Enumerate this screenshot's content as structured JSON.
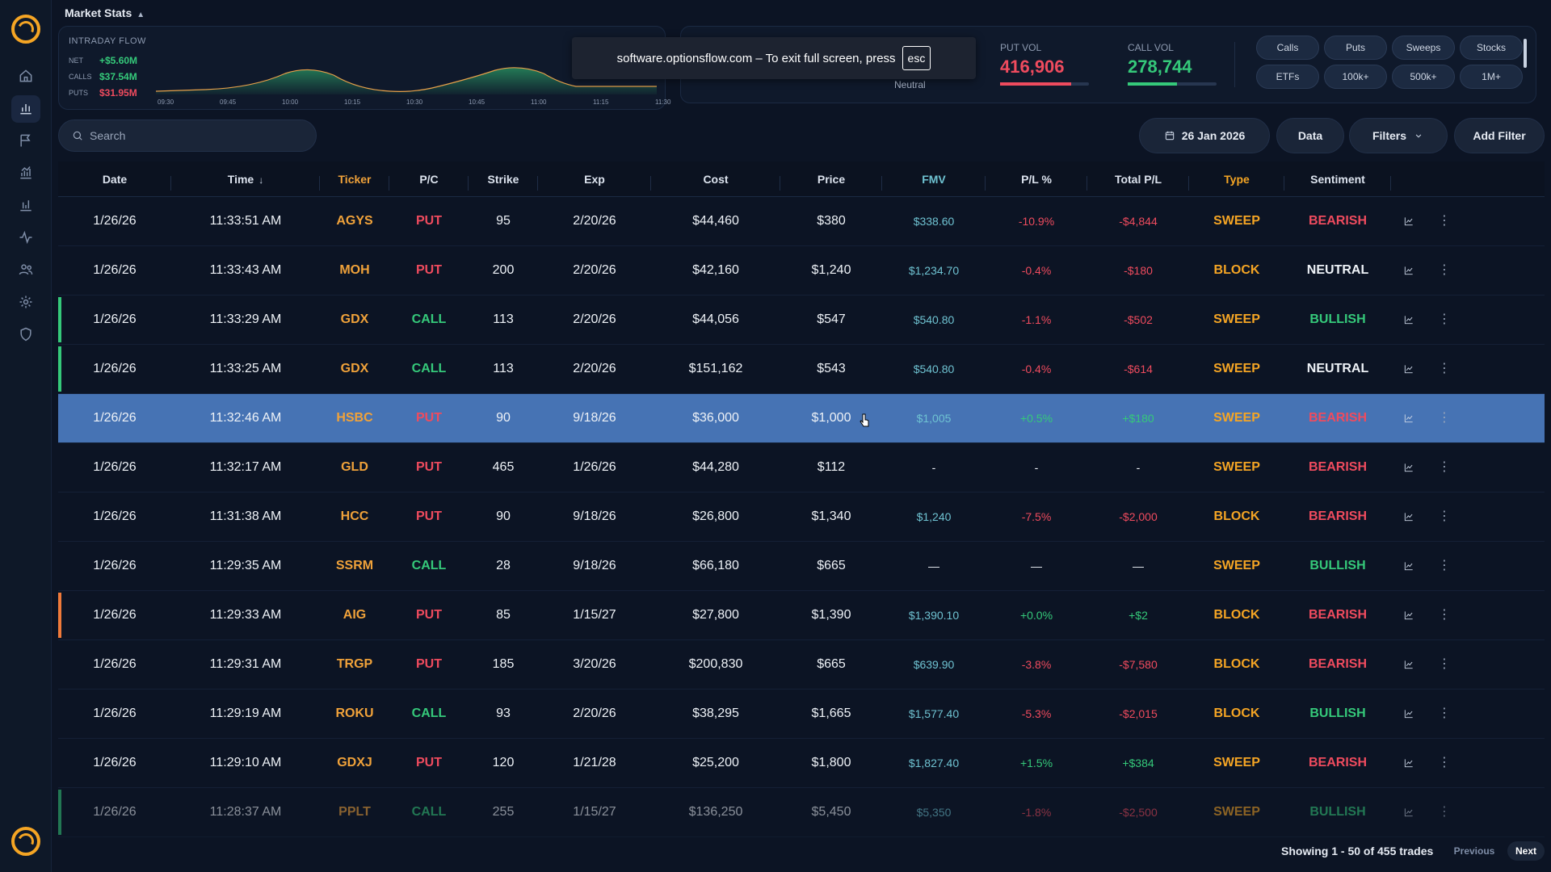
{
  "sidebar": {
    "nav": [
      "home-icon",
      "chart-bar-icon",
      "flag-icon",
      "analytics-icon",
      "bar-chart-icon",
      "pulse-icon",
      "users-icon",
      "gear-icon",
      "shield-icon"
    ]
  },
  "header": {
    "title": "Market Stats"
  },
  "intraday": {
    "label": "INTRADAY FLOW",
    "net_label": "NET",
    "net_value": "+$5.60M",
    "calls_label": "CALLS",
    "calls_value": "$37.54M",
    "puts_label": "PUTS",
    "puts_value": "$31.95M",
    "times": [
      "09:30",
      "09:45",
      "10:00",
      "10:15",
      "10:30",
      "10:45",
      "11:00",
      "11:15",
      "11:30"
    ]
  },
  "fullscreen_toast": {
    "text": "software.optionsflow.com – To exit full screen, press",
    "key": "esc"
  },
  "sentiment": {
    "label": "Neutral"
  },
  "volume": {
    "put_label": "PUT VOL",
    "put_value": "416,906",
    "put_fill": 0.8,
    "call_label": "CALL VOL",
    "call_value": "278,744",
    "call_fill": 0.55,
    "put_color": "#ef4b5e",
    "call_color": "#35c97a"
  },
  "quick_filters": [
    "Calls",
    "Puts",
    "Sweeps",
    "Stocks",
    "ETFs",
    "100k+",
    "500k+",
    "1M+"
  ],
  "toolbar": {
    "search_placeholder": "Search",
    "date": "26 Jan 2026",
    "data_label": "Data",
    "filters_label": "Filters",
    "add_filter_label": "Add Filter"
  },
  "table": {
    "columns": [
      "Date",
      "Time",
      "Ticker",
      "P/C",
      "Strike",
      "Exp",
      "Cost",
      "Price",
      "FMV",
      "P/L %",
      "Total P/L",
      "Type",
      "Sentiment"
    ],
    "rows": [
      {
        "date": "1/26/26",
        "time": "11:33:51 AM",
        "ticker": "AGYS",
        "pc": "PUT",
        "strike": "95",
        "exp": "2/20/26",
        "cost": "$44,460",
        "price": "$380",
        "fmv": "$338.60",
        "plp": "-10.9%",
        "tpl": "-$4,844",
        "type": "SWEEP",
        "sentiment": "BEARISH",
        "edge": ""
      },
      {
        "date": "1/26/26",
        "time": "11:33:43 AM",
        "ticker": "MOH",
        "pc": "PUT",
        "strike": "200",
        "exp": "2/20/26",
        "cost": "$42,160",
        "price": "$1,240",
        "fmv": "$1,234.70",
        "plp": "-0.4%",
        "tpl": "-$180",
        "type": "BLOCK",
        "sentiment": "NEUTRAL",
        "edge": ""
      },
      {
        "date": "1/26/26",
        "time": "11:33:29 AM",
        "ticker": "GDX",
        "pc": "CALL",
        "strike": "113",
        "exp": "2/20/26",
        "cost": "$44,056",
        "price": "$547",
        "fmv": "$540.80",
        "plp": "-1.1%",
        "tpl": "-$502",
        "type": "SWEEP",
        "sentiment": "BULLISH",
        "edge": "#35c97a"
      },
      {
        "date": "1/26/26",
        "time": "11:33:25 AM",
        "ticker": "GDX",
        "pc": "CALL",
        "strike": "113",
        "exp": "2/20/26",
        "cost": "$151,162",
        "price": "$543",
        "fmv": "$540.80",
        "plp": "-0.4%",
        "tpl": "-$614",
        "type": "SWEEP",
        "sentiment": "NEUTRAL",
        "edge": "#35c97a"
      },
      {
        "date": "1/26/26",
        "time": "11:32:46 AM",
        "ticker": "HSBC",
        "pc": "PUT",
        "strike": "90",
        "exp": "9/18/26",
        "cost": "$36,000",
        "price": "$1,000",
        "fmv": "$1,005",
        "plp": "+0.5%",
        "tpl": "+$180",
        "type": "SWEEP",
        "sentiment": "BEARISH",
        "edge": "",
        "selected": true
      },
      {
        "date": "1/26/26",
        "time": "11:32:17 AM",
        "ticker": "GLD",
        "pc": "PUT",
        "strike": "465",
        "exp": "1/26/26",
        "cost": "$44,280",
        "price": "$112",
        "fmv": "-",
        "plp": "-",
        "tpl": "-",
        "type": "SWEEP",
        "sentiment": "BEARISH",
        "edge": ""
      },
      {
        "date": "1/26/26",
        "time": "11:31:38 AM",
        "ticker": "HCC",
        "pc": "PUT",
        "strike": "90",
        "exp": "9/18/26",
        "cost": "$26,800",
        "price": "$1,340",
        "fmv": "$1,240",
        "plp": "-7.5%",
        "tpl": "-$2,000",
        "type": "BLOCK",
        "sentiment": "BEARISH",
        "edge": ""
      },
      {
        "date": "1/26/26",
        "time": "11:29:35 AM",
        "ticker": "SSRM",
        "pc": "CALL",
        "strike": "28",
        "exp": "9/18/26",
        "cost": "$66,180",
        "price": "$665",
        "fmv": "—",
        "plp": "—",
        "tpl": "—",
        "type": "SWEEP",
        "sentiment": "BULLISH",
        "edge": ""
      },
      {
        "date": "1/26/26",
        "time": "11:29:33 AM",
        "ticker": "AIG",
        "pc": "PUT",
        "strike": "85",
        "exp": "1/15/27",
        "cost": "$27,800",
        "price": "$1,390",
        "fmv": "$1,390.10",
        "plp": "+0.0%",
        "tpl": "+$2",
        "type": "BLOCK",
        "sentiment": "BEARISH",
        "edge": "#f07a3a"
      },
      {
        "date": "1/26/26",
        "time": "11:29:31 AM",
        "ticker": "TRGP",
        "pc": "PUT",
        "strike": "185",
        "exp": "3/20/26",
        "cost": "$200,830",
        "price": "$665",
        "fmv": "$639.90",
        "plp": "-3.8%",
        "tpl": "-$7,580",
        "type": "BLOCK",
        "sentiment": "BEARISH",
        "edge": ""
      },
      {
        "date": "1/26/26",
        "time": "11:29:19 AM",
        "ticker": "ROKU",
        "pc": "CALL",
        "strike": "93",
        "exp": "2/20/26",
        "cost": "$38,295",
        "price": "$1,665",
        "fmv": "$1,577.40",
        "plp": "-5.3%",
        "tpl": "-$2,015",
        "type": "BLOCK",
        "sentiment": "BULLISH",
        "edge": ""
      },
      {
        "date": "1/26/26",
        "time": "11:29:10 AM",
        "ticker": "GDXJ",
        "pc": "PUT",
        "strike": "120",
        "exp": "1/21/28",
        "cost": "$25,200",
        "price": "$1,800",
        "fmv": "$1,827.40",
        "plp": "+1.5%",
        "tpl": "+$384",
        "type": "SWEEP",
        "sentiment": "BEARISH",
        "edge": ""
      },
      {
        "date": "1/26/26",
        "time": "11:28:37 AM",
        "ticker": "PPLT",
        "pc": "CALL",
        "strike": "255",
        "exp": "1/15/27",
        "cost": "$136,250",
        "price": "$5,450",
        "fmv": "$5,350",
        "plp": "-1.8%",
        "tpl": "-$2,500",
        "type": "SWEEP",
        "sentiment": "BULLISH",
        "edge": "#35c97a",
        "muted": true
      }
    ]
  },
  "pagination": {
    "summary": "Showing 1 - 50 of 455 trades",
    "previous": "Previous",
    "next": "Next"
  }
}
